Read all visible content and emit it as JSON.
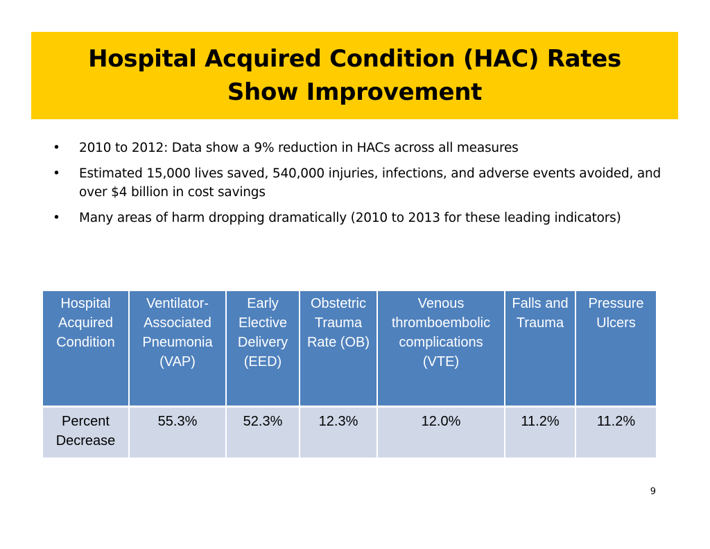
{
  "title": {
    "line1": "Hospital Acquired Condition (HAC) Rates",
    "line2": "Show Improvement",
    "background_color": "#FFCC00"
  },
  "bullets": [
    {
      "marker": "•",
      "text": "2010 to 2012: Data show a 9% reduction in HACs across all measures"
    },
    {
      "marker": "•",
      "text": "Estimated 15,000 lives saved, 540,000 injuries, infections, and adverse events avoided, and over $4 billion in cost savings"
    },
    {
      "marker": "•",
      "text": "Many areas of harm dropping dramatically (2010 to 2013 for these leading indicators)"
    }
  ],
  "table": {
    "header_color": "#4F81BD",
    "row_color": "#D0D8E8",
    "headers": [
      "Hospital Acquired Condition",
      "Ventilator-Associated Pneumonia (VAP)",
      "Early Elective Delivery (EED)",
      "Obstetric Trauma Rate (OB)",
      "Venous thromboembolic complications (VTE)",
      "Falls and Trauma",
      "Pressure Ulcers"
    ],
    "rows": [
      {
        "cells": [
          "Percent Decrease",
          "55.3%",
          "52.3%",
          "12.3%",
          "12.0%",
          "11.2%",
          "11.2%"
        ]
      }
    ]
  },
  "page_number": "9"
}
